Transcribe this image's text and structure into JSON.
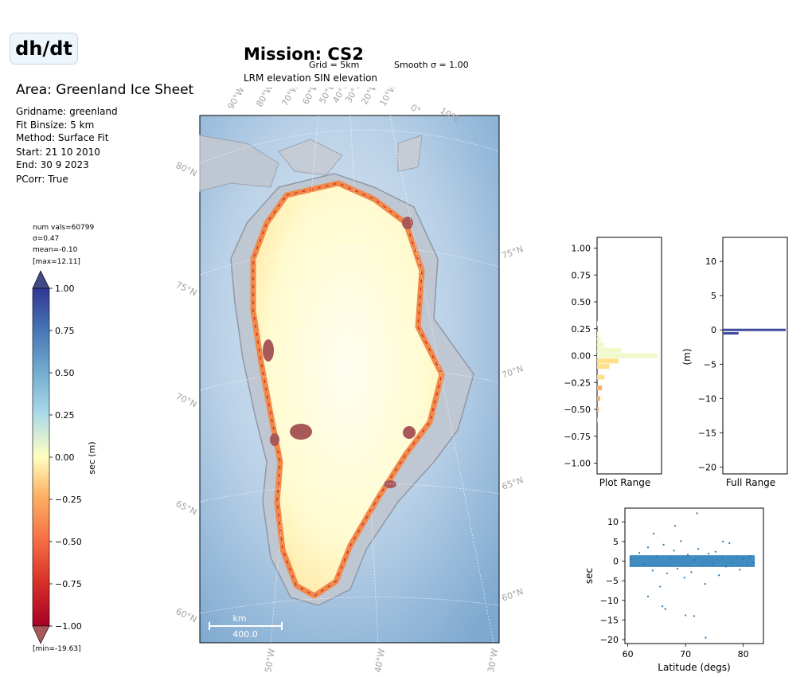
{
  "header": {
    "badge": "dh/dt",
    "area": "Area: Greenland Ice Sheet",
    "mission": "Mission: CS2",
    "grid": "Grid = 5km",
    "smooth": "Smooth σ = 1.00",
    "modes": "LRM elevation SIN elevation"
  },
  "meta": [
    "Gridname: greenland",
    "Fit Binsize: 5 km",
    "Method: Surface Fit",
    "Start: 21 10 2010",
    "End: 30 9 2023",
    "PCorr: True"
  ],
  "stats": {
    "num_vals": "num vals=60799",
    "sigma": "σ=0.47",
    "mean": "mean=-0.10",
    "max": "[max=12.11]",
    "min": "[min=-19.63]"
  },
  "colorbar": {
    "label": "sec (m)",
    "ticks": [
      "1.00",
      "0.75",
      "0.50",
      "0.25",
      "0.00",
      "−0.25",
      "−0.50",
      "−0.75",
      "−1.00"
    ],
    "colors": {
      "high": "#313695",
      "mid": "#ffffbf",
      "low": "#a50026",
      "over": "#3f4a86",
      "under": "#a85858"
    }
  },
  "map": {
    "lon_labels_top": [
      "90°W",
      "80°W",
      "70°W",
      "60°W",
      "50°W",
      "40°W",
      "30°W",
      "20°W",
      "10°W",
      "0°",
      "10°E"
    ],
    "lat_labels_left": [
      "80°N",
      "75°N",
      "70°N",
      "65°N",
      "60°N"
    ],
    "lat_labels_right": [
      "75°N",
      "70°N",
      "65°N",
      "60°N"
    ],
    "lon_labels_bottom": [
      "50°W",
      "40°W",
      "30°W"
    ],
    "scale_unit": "km",
    "scale_value": "400.0",
    "colors": {
      "ocean": "#8fb5d6",
      "land": "#bfc7d2",
      "ice": "#fffbd0",
      "loss": "#f08a4b",
      "strong_loss": "#a85858"
    }
  },
  "chart_data": [
    {
      "type": "area",
      "name": "histogram-plot-range",
      "xlabel": "Plot Range",
      "ylim": [
        -1.1,
        1.1
      ],
      "yticks": [
        "1.00",
        "0.75",
        "0.50",
        "0.25",
        "0.00",
        "−0.25",
        "−0.50",
        "−0.75",
        "−1.00"
      ],
      "y": [
        -0.6,
        -0.5,
        -0.4,
        -0.3,
        -0.2,
        -0.1,
        -0.05,
        0.0,
        0.05,
        0.1,
        0.15,
        0.2,
        0.3
      ],
      "density": [
        0.01,
        0.03,
        0.05,
        0.08,
        0.12,
        0.2,
        0.35,
        0.98,
        0.4,
        0.12,
        0.06,
        0.03,
        0.01
      ]
    },
    {
      "type": "bar",
      "name": "histogram-full-range",
      "xlabel": "Full Range",
      "ylabel": "(m)",
      "ylim": [
        -21,
        13.5
      ],
      "yticks": [
        "10",
        "5",
        "0",
        "−5",
        "−10",
        "−15",
        "−20"
      ],
      "y": [
        0.0,
        -0.5
      ],
      "density": [
        1.0,
        0.25
      ]
    },
    {
      "type": "scatter",
      "name": "sec-vs-latitude",
      "xlabel": "Latitude (degs)",
      "ylabel": "sec",
      "xlim": [
        59.5,
        83.5
      ],
      "ylim": [
        -21,
        13.5
      ],
      "xticks": [
        "60",
        "70",
        "80"
      ],
      "yticks": [
        "10",
        "5",
        "0",
        "−5",
        "−10",
        "−15",
        "−20"
      ],
      "color": "#1f77b4",
      "x": [
        60.5,
        61.2,
        62.0,
        62.8,
        63.5,
        64.3,
        65.0,
        65.6,
        66.2,
        66.8,
        67.4,
        68.0,
        68.6,
        69.2,
        69.8,
        70.4,
        71.0,
        71.6,
        72.2,
        72.8,
        73.4,
        74.0,
        74.6,
        75.2,
        75.8,
        76.4,
        77.0,
        77.6,
        78.2,
        78.8,
        79.4,
        80.0,
        80.6,
        81.2,
        81.8,
        64.5,
        66.5,
        68.2,
        70.0,
        72.0,
        73.5,
        76.5,
        66.0,
        71.5,
        63.5
      ],
      "y": [
        0.5,
        -1.2,
        2.1,
        -0.8,
        3.5,
        -2.4,
        1.2,
        -6.5,
        4.2,
        -3.1,
        0.8,
        2.7,
        -1.9,
        5.1,
        -4.2,
        1.6,
        -2.8,
        0.3,
        3.1,
        -1.1,
        -5.8,
        1.9,
        -0.6,
        2.4,
        -3.6,
        0.9,
        -1.4,
        4.6,
        -0.4,
        1.1,
        -2.2,
        0.6,
        -0.9,
        1.3,
        -0.5,
        7.0,
        -12.2,
        9.0,
        -13.8,
        12.2,
        -19.5,
        5.0,
        -11.5,
        -14.0,
        -9.0
      ]
    }
  ]
}
